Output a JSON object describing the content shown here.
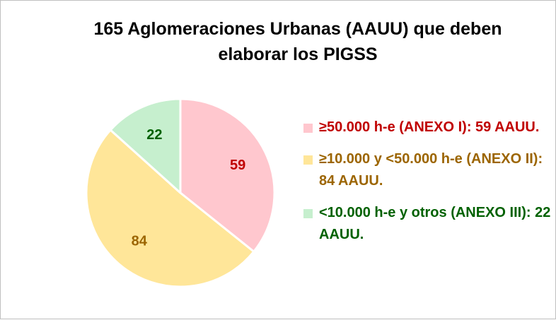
{
  "chart_data": {
    "type": "pie",
    "title": "165 Aglomeraciones Urbanas (AAUU) que deben elaborar los PIGSS",
    "slices": [
      {
        "label": "≥50.000 h-e (ANEXO I): 59 AAUU.",
        "value": 59,
        "data_label": "59",
        "color": "#ffc7ce",
        "text_color": "#c00000"
      },
      {
        "label": "≥10.000 y <50.000 h-e (ANEXO II): 84 AAUU.",
        "value": 84,
        "data_label": "84",
        "color": "#ffe699",
        "text_color": "#9c6500"
      },
      {
        "label": "<10.000 h-e y otros (ANEXO III): 22 AAUU.",
        "value": 22,
        "data_label": "22",
        "color": "#c6efce",
        "text_color": "#006100"
      }
    ],
    "legend_position": "right",
    "start_angle": "12 o'clock",
    "direction": "clockwise"
  }
}
